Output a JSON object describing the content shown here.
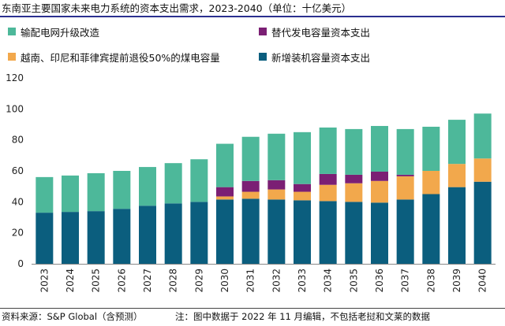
{
  "title": "东南亚主要国家未来电力系统的资本支出需求，2023-2040（单位：十亿美元）",
  "source": "资料来源：S&P Global（含预测）",
  "note": "注：图中数据于 2022 年 11 月编辑，不包括老挝和文莱的数据",
  "chart_data": {
    "type": "bar",
    "stacked": true,
    "categories": [
      "2023",
      "2024",
      "2025",
      "2026",
      "2027",
      "2028",
      "2029",
      "2030",
      "2031",
      "2032",
      "2033",
      "2034",
      "2035",
      "2036",
      "2037",
      "2038",
      "2039",
      "2040"
    ],
    "ylim": [
      0,
      120
    ],
    "yticks": [
      "0",
      "20",
      "40",
      "60",
      "80",
      "100",
      "120"
    ],
    "grid": false,
    "legend_position": "top",
    "series": [
      {
        "name": "新增装机容量资本支出",
        "color": "#0b5e7e",
        "values": [
          33,
          33.5,
          34,
          35.5,
          37.5,
          39,
          40,
          41.5,
          42,
          41.5,
          41,
          40.5,
          40,
          39.5,
          41.5,
          45,
          49.5,
          53
        ]
      },
      {
        "name": "越南、印尼和菲律宾提前退役50%的煤电容量",
        "color": "#f2a84c",
        "values": [
          0,
          0,
          0,
          0,
          0,
          0,
          0,
          2,
          4.5,
          6.5,
          5.5,
          10.5,
          12,
          14,
          15,
          15,
          15,
          15
        ]
      },
      {
        "name": "替代发电容量资本支出",
        "color": "#7b1f74",
        "values": [
          0,
          0,
          0,
          0,
          0,
          0,
          0,
          6,
          7,
          6,
          5,
          7,
          5.5,
          6,
          1,
          0,
          0,
          0
        ]
      },
      {
        "name": "输配电网升级改造",
        "color": "#4db89a",
        "values": [
          23,
          23.5,
          24.5,
          24.5,
          25,
          26,
          27.5,
          28,
          28.5,
          30,
          33.5,
          30,
          29.5,
          29.5,
          29.5,
          28.5,
          28.5,
          29
        ]
      }
    ]
  }
}
